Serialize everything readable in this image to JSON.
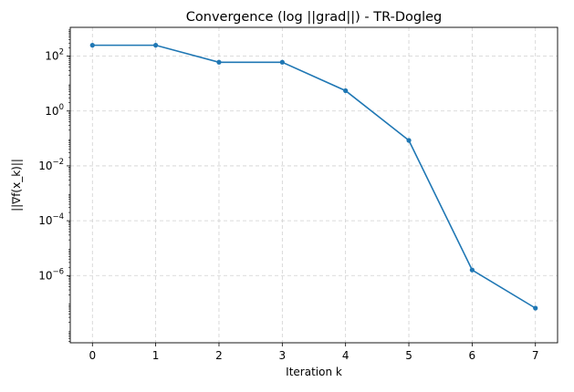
{
  "chart_data": {
    "type": "line",
    "title": "Convergence (log ||grad||) - TR-Dogleg",
    "xlabel": "Iteration k",
    "ylabel": "||∇f(x_k)||",
    "y_scale": "log",
    "grid": true,
    "xlim": [
      -0.35,
      7.35
    ],
    "ylim_log10": [
      -8.45,
      3.05
    ],
    "x_ticks": [
      0,
      1,
      2,
      3,
      4,
      5,
      6,
      7
    ],
    "y_ticks": [
      {
        "exp": 2,
        "base": "10",
        "power": "2"
      },
      {
        "exp": 0,
        "base": "10",
        "power": "0"
      },
      {
        "exp": -2,
        "base": "10",
        "power": "−2"
      },
      {
        "exp": -4,
        "base": "10",
        "power": "−4"
      },
      {
        "exp": -6,
        "base": "10",
        "power": "−6"
      }
    ],
    "series": [
      {
        "color": "#1f77b4",
        "marker": "circle",
        "x": [
          0,
          1,
          2,
          3,
          4,
          5,
          6,
          7
        ],
        "y": [
          250,
          250,
          60,
          60,
          5.5,
          0.085,
          1.6e-06,
          6.5e-08
        ]
      }
    ]
  }
}
